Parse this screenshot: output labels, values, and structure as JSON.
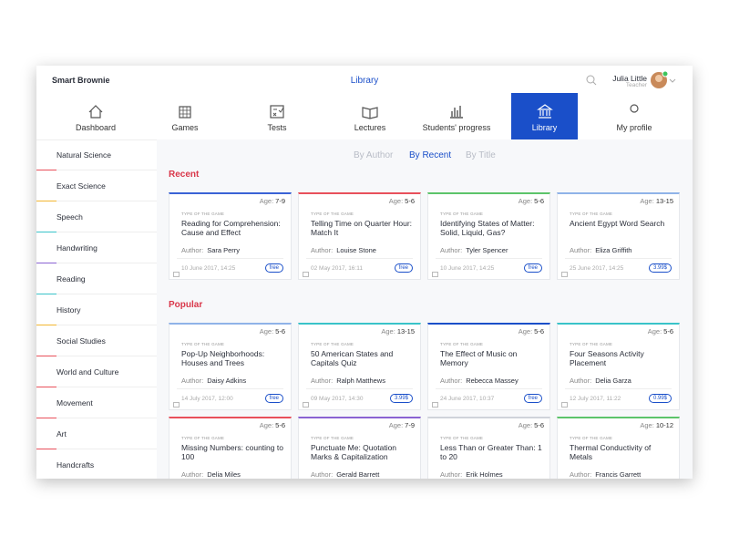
{
  "header": {
    "brand": "Smart Brownie",
    "title": "Library",
    "user_name": "Julia Little",
    "user_role": "Teacher"
  },
  "nav": [
    {
      "label": "Dashboard"
    },
    {
      "label": "Games"
    },
    {
      "label": "Tests"
    },
    {
      "label": "Lectures"
    },
    {
      "label": "Students' progress"
    },
    {
      "label": "Library"
    },
    {
      "label": "My profile"
    }
  ],
  "sidebar": [
    {
      "label": "Natural Science",
      "color": "#e8505b"
    },
    {
      "label": "Exact Science",
      "color": "#f2b631"
    },
    {
      "label": "Speech",
      "color": "#39c3c9"
    },
    {
      "label": "Handwriting",
      "color": "#8a63d2"
    },
    {
      "label": "Reading",
      "color": "#39c3c9"
    },
    {
      "label": "History",
      "color": "#f2b631"
    },
    {
      "label": "Social Studies",
      "color": "#e8505b"
    },
    {
      "label": "World and Culture",
      "color": "#e8505b"
    },
    {
      "label": "Movement",
      "color": "#e8505b"
    },
    {
      "label": "Art",
      "color": "#e8505b"
    },
    {
      "label": "Handcrafts",
      "color": "#1a4fc9"
    }
  ],
  "filters": [
    "By Author",
    "By Recent",
    "By Title"
  ],
  "sections": [
    {
      "title": "Recent",
      "cards": [
        {
          "age_label": "Age:",
          "age": "7-9",
          "type": "TYPE OF THE GAME",
          "title": "Reading for Comprehension: Cause and Effect",
          "author_label": "Author:",
          "author": "Sara Perry",
          "date": "10 June 2017, 14:25",
          "price": "free",
          "color": "#3a63d6"
        },
        {
          "age_label": "Age:",
          "age": "5-6",
          "type": "TYPE OF THE GAME",
          "title": "Telling Time on Quarter Hour: Match It",
          "author_label": "Author:",
          "author": "Louise Stone",
          "date": "02 May 2017, 16:11",
          "price": "free",
          "color": "#e8505b"
        },
        {
          "age_label": "Age:",
          "age": "5-6",
          "type": "TYPE OF THE GAME",
          "title": "Identifying States of Matter: Solid, Liquid, Gas?",
          "author_label": "Author:",
          "author": "Tyler Spencer",
          "date": "10 June 2017, 14:25",
          "price": "free",
          "color": "#5cc46a"
        },
        {
          "age_label": "Age:",
          "age": "13-15",
          "type": "TYPE OF THE GAME",
          "title": "Ancient Egypt Word Search",
          "author_label": "Author:",
          "author": "Eliza Griffith",
          "date": "25 June 2017, 14:25",
          "price": "3.99$",
          "color": "#8fb3e8"
        }
      ]
    },
    {
      "title": "Popular",
      "cards": [
        {
          "age_label": "Age:",
          "age": "5-6",
          "type": "TYPE OF THE GAME",
          "title": "Pop-Up Neighborhoods: Houses and Trees",
          "author_label": "Author:",
          "author": "Daisy Adkins",
          "date": "14 July 2017, 12:00",
          "price": "free",
          "color": "#8fb3e8"
        },
        {
          "age_label": "Age:",
          "age": "13-15",
          "type": "TYPE OF THE GAME",
          "title": "50 American States and Capitals Quiz",
          "author_label": "Author:",
          "author": "Ralph Matthews",
          "date": "09 May 2017, 14:30",
          "price": "3.99$",
          "color": "#39c3c9"
        },
        {
          "age_label": "Age:",
          "age": "5-6",
          "type": "TYPE OF THE GAME",
          "title": "The Effect of Music on Memory",
          "author_label": "Author:",
          "author": "Rebecca Massey",
          "date": "24 June 2017, 10:37",
          "price": "free",
          "color": "#1a4fc9"
        },
        {
          "age_label": "Age:",
          "age": "5-6",
          "type": "TYPE OF THE GAME",
          "title": "Four Seasons Activity Placement",
          "author_label": "Author:",
          "author": "Delia Garza",
          "date": "12 July 2017, 11:22",
          "price": "0.99$",
          "color": "#39c3c9"
        },
        {
          "age_label": "Age:",
          "age": "5-6",
          "type": "TYPE OF THE GAME",
          "title": "Missing Numbers: counting to 100",
          "author_label": "Author:",
          "author": "Delia Miles",
          "color": "#e8505b"
        },
        {
          "age_label": "Age:",
          "age": "7-9",
          "type": "TYPE OF THE GAME",
          "title": "Punctuate Me: Quotation Marks & Capitalization",
          "author_label": "Author:",
          "author": "Gerald Barrett",
          "color": "#8a63d2"
        },
        {
          "age_label": "Age:",
          "age": "5-6",
          "type": "TYPE OF THE GAME",
          "title": "Less Than or Greater Than: 1 to 20",
          "author_label": "Author:",
          "author": "Erik Holmes",
          "color": "#cfd3da"
        },
        {
          "age_label": "Age:",
          "age": "10-12",
          "type": "TYPE OF THE GAME",
          "title": "Thermal Conductivity of Metals",
          "author_label": "Author:",
          "author": "Francis Garrett",
          "color": "#5cc46a"
        }
      ]
    }
  ]
}
